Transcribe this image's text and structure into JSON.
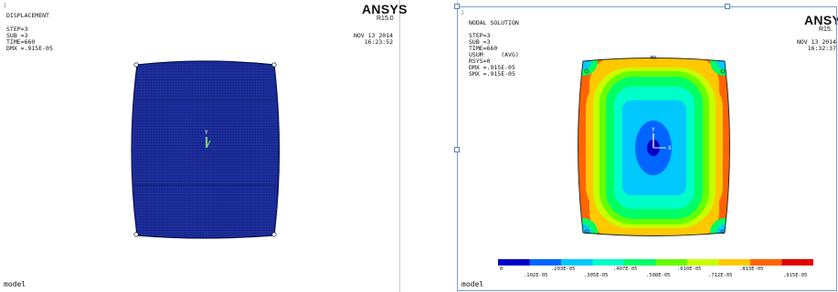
{
  "left_panel": {
    "title": "DISPLACEMENT",
    "lines": [
      "STEP=3",
      "SUB =3",
      "TIME=660",
      "DMX =.915E-05"
    ],
    "logo": "ANSYS",
    "version": "R15.0",
    "date": "NOV 13 2014",
    "time": "16:23:52",
    "footer": "model",
    "corner_mark": "1",
    "mesh_fill_color": "#1d2f9e",
    "axis_label": "Y"
  },
  "right_panel": {
    "title": "NODAL SOLUTION",
    "lines": [
      "STEP=3",
      "SUB =3",
      "TIME=660",
      "USUM     (AVG)",
      "RSYS=0",
      "DMX =.915E-05",
      "SMX =.915E-05"
    ],
    "logo": "ANSYS",
    "version": "R15.",
    "date": "NOV 13 2014",
    "time": "16:32:37",
    "footer": "model",
    "corner_mark": "1",
    "mx_label": "MX",
    "axis_y_label": "Y",
    "axis_x_label": "X",
    "legend_top_values": [
      "0",
      ".203E-05",
      ".407E-05",
      ".610E-05",
      ".813E-05"
    ],
    "legend_bottom_values": [
      ".102E-05",
      ".305E-05",
      ".508E-05",
      ".712E-05",
      ".915E-05"
    ],
    "legend_colors": [
      "#0000c8",
      "#0064ff",
      "#00c8ff",
      "#00ffc8",
      "#00ff64",
      "#64ff00",
      "#c8ff00",
      "#ffc800",
      "#ff6400",
      "#e00000"
    ]
  }
}
